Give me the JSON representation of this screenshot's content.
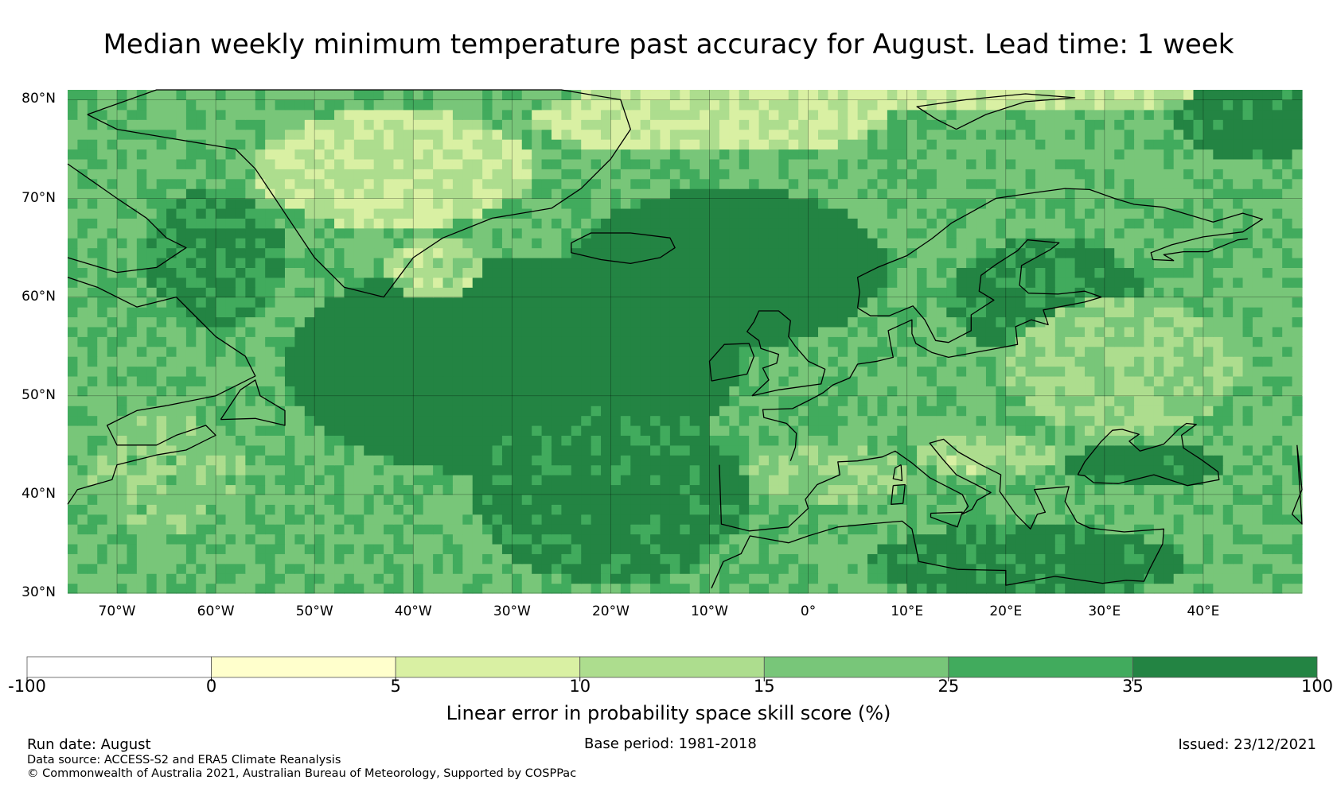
{
  "title": "Median weekly minimum temperature past accuracy for August. Lead time: 1 week",
  "map": {
    "lat_range": [
      30,
      81
    ],
    "lon_range": [
      -75,
      50
    ],
    "lat_ticks": [
      {
        "value": 80,
        "label": "80°N"
      },
      {
        "value": 70,
        "label": "70°N"
      },
      {
        "value": 60,
        "label": "60°N"
      },
      {
        "value": 50,
        "label": "50°N"
      },
      {
        "value": 40,
        "label": "40°N"
      },
      {
        "value": 30,
        "label": "30°N"
      }
    ],
    "lon_ticks": [
      {
        "value": -70,
        "label": "70°W"
      },
      {
        "value": -60,
        "label": "60°W"
      },
      {
        "value": -50,
        "label": "50°W"
      },
      {
        "value": -40,
        "label": "40°W"
      },
      {
        "value": -30,
        "label": "30°W"
      },
      {
        "value": -20,
        "label": "20°W"
      },
      {
        "value": -10,
        "label": "10°W"
      },
      {
        "value": 0,
        "label": "0°"
      },
      {
        "value": 10,
        "label": "10°E"
      },
      {
        "value": 20,
        "label": "20°E"
      },
      {
        "value": 30,
        "label": "30°E"
      },
      {
        "value": 40,
        "label": "40°E"
      }
    ],
    "gridlines": true
  },
  "colorbar": {
    "label": "Linear error in probability space skill score (%)",
    "bounds": [
      -100,
      0,
      5,
      10,
      15,
      25,
      35,
      100
    ],
    "tick_labels": [
      "-100",
      "0",
      "5",
      "10",
      "15",
      "25",
      "35",
      "100"
    ],
    "colors": [
      "#ffffff",
      "#ffffcc",
      "#d9f0a3",
      "#addd8e",
      "#78c679",
      "#41ab5d",
      "#238443"
    ]
  },
  "footer": {
    "run_date": "Run date: August",
    "base_period": "Base period: 1981-2018",
    "issued": "Issued: 23/12/2021",
    "data_source": "Data source: ACCESS-S2 and ERA5 Climate Reanalysis",
    "copyright": "© Commonwealth of Australia 2021, Australian Bureau of Meteorology, Supported by COSPPac"
  }
}
